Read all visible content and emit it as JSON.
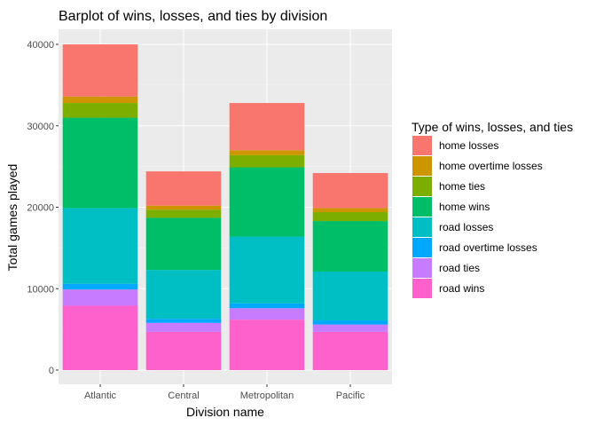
{
  "chart_data": {
    "type": "bar",
    "stacked": true,
    "title": "Barplot of wins, losses, and ties by division",
    "xlabel": "Division name",
    "ylabel": "Total games played",
    "categories": [
      "Atlantic",
      "Central",
      "Metropolitan",
      "Pacific"
    ],
    "ylim": [
      0,
      42000
    ],
    "yticks": [
      0,
      10000,
      20000,
      30000,
      40000
    ],
    "ytick_labels": [
      "0",
      "10000",
      "20000",
      "30000",
      "40000"
    ],
    "grid": true,
    "legend": {
      "title": "Type of wins, losses, and ties",
      "position": "right"
    },
    "series": [
      {
        "name": "home losses",
        "color": "#F8766D",
        "values": [
          6400,
          4200,
          5800,
          4300
        ]
      },
      {
        "name": "home overtime losses",
        "color": "#CD9600",
        "values": [
          800,
          500,
          600,
          500
        ]
      },
      {
        "name": "home ties",
        "color": "#7CAE00",
        "values": [
          1800,
          1000,
          1500,
          1100
        ]
      },
      {
        "name": "home wins",
        "color": "#00BE67",
        "values": [
          11100,
          6400,
          8500,
          6200
        ]
      },
      {
        "name": "road losses",
        "color": "#00BFC4",
        "values": [
          9300,
          6000,
          8200,
          6000
        ]
      },
      {
        "name": "road overtime losses",
        "color": "#00A9FF",
        "values": [
          700,
          500,
          600,
          500
        ]
      },
      {
        "name": "road ties",
        "color": "#C77CFF",
        "values": [
          2000,
          1100,
          1400,
          900
        ]
      },
      {
        "name": "road wins",
        "color": "#FF61CC",
        "values": [
          7900,
          4700,
          6200,
          4700
        ]
      }
    ]
  }
}
